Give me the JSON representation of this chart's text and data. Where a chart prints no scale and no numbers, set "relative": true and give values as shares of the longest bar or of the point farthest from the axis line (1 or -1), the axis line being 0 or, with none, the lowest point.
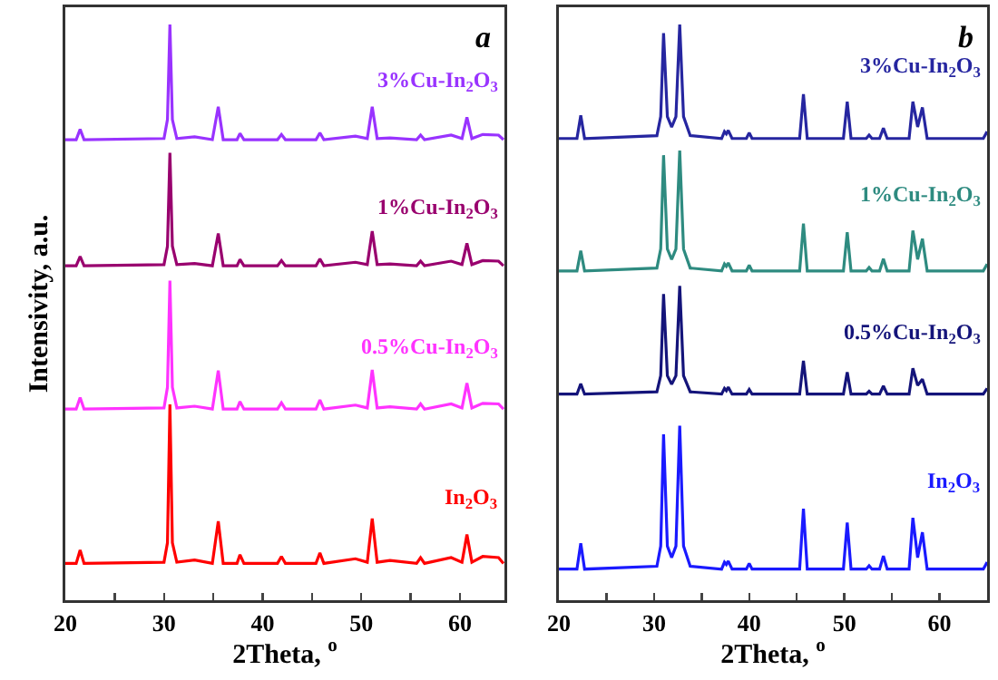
{
  "chart_data": [
    {
      "type": "line",
      "relative": true,
      "xlabel": "2Theta, $^{o}$",
      "ylabel": "Intensivity, a.u.",
      "annotations": [
        "a"
      ],
      "marker": "none",
      "line_style": "solid",
      "tick_labels": "x",
      "xlim": [
        20,
        64.5
      ],
      "xticks": [
        20,
        {
          "value": 25,
          "label": null
        },
        30,
        {
          "value": 35,
          "label": null
        },
        40,
        {
          "value": 45,
          "label": null
        },
        50,
        {
          "value": 55,
          "label": null
        },
        60
      ],
      "x": [
        20,
        21.1,
        21.5,
        21.9,
        30.0,
        30.35,
        30.6,
        30.85,
        31.3,
        33.1,
        34.9,
        35.5,
        36.0,
        37.4,
        37.7,
        38.1,
        41.5,
        41.9,
        42.3,
        45.4,
        45.8,
        46.2,
        49.4,
        50.6,
        51.1,
        51.6,
        52.9,
        55.6,
        56.0,
        56.4,
        59.1,
        60.2,
        60.7,
        61.2,
        62.3,
        63.9,
        64.4
      ],
      "series": [
        {
          "name": "In$_{2}$O$_{3}$",
          "color": "#ff0000",
          "values": [
            0.064,
            0.064,
            0.087,
            0.064,
            0.066,
            0.1,
            0.34,
            0.1,
            0.066,
            0.07,
            0.064,
            0.137,
            0.064,
            0.064,
            0.079,
            0.064,
            0.064,
            0.076,
            0.064,
            0.064,
            0.082,
            0.064,
            0.072,
            0.066,
            0.142,
            0.066,
            0.069,
            0.064,
            0.074,
            0.064,
            0.074,
            0.066,
            0.114,
            0.066,
            0.076,
            0.074,
            0.064
          ]
        },
        {
          "name": "0.5%Cu-In$_{2}$O$_{3}$",
          "color": "#ff33ff",
          "values": [
            0.332,
            0.332,
            0.352,
            0.332,
            0.334,
            0.37,
            0.555,
            0.37,
            0.334,
            0.337,
            0.332,
            0.399,
            0.332,
            0.332,
            0.345,
            0.332,
            0.332,
            0.343,
            0.332,
            0.332,
            0.348,
            0.332,
            0.339,
            0.334,
            0.4,
            0.334,
            0.336,
            0.332,
            0.341,
            0.332,
            0.341,
            0.334,
            0.377,
            0.334,
            0.342,
            0.341,
            0.332
          ]
        },
        {
          "name": "1%Cu-In$_{2}$O$_{3}$",
          "color": "#99006e",
          "values": [
            0.581,
            0.581,
            0.597,
            0.581,
            0.583,
            0.615,
            0.777,
            0.615,
            0.583,
            0.585,
            0.581,
            0.637,
            0.581,
            0.581,
            0.592,
            0.581,
            0.581,
            0.59,
            0.581,
            0.581,
            0.593,
            0.581,
            0.587,
            0.583,
            0.641,
            0.583,
            0.584,
            0.581,
            0.589,
            0.581,
            0.589,
            0.583,
            0.62,
            0.583,
            0.59,
            0.589,
            0.581
          ]
        },
        {
          "name": "3%Cu-In$_{2}$O$_{3}$",
          "color": "#9933ff",
          "values": [
            0.8,
            0.8,
            0.818,
            0.8,
            0.802,
            0.835,
            1.0,
            0.835,
            0.802,
            0.805,
            0.8,
            0.857,
            0.8,
            0.8,
            0.811,
            0.8,
            0.8,
            0.809,
            0.8,
            0.8,
            0.812,
            0.8,
            0.806,
            0.802,
            0.857,
            0.802,
            0.803,
            0.8,
            0.808,
            0.8,
            0.808,
            0.802,
            0.839,
            0.802,
            0.809,
            0.808,
            0.8
          ]
        }
      ]
    },
    {
      "type": "line",
      "relative": true,
      "xlabel": "2Theta, $^{o}$",
      "annotations": [
        "b"
      ],
      "marker": "none",
      "line_style": "solid",
      "tick_labels": "x",
      "xlim": [
        20,
        65
      ],
      "xticks": [
        20,
        {
          "value": 25,
          "label": null
        },
        30,
        {
          "value": 35,
          "label": null
        },
        40,
        {
          "value": 45,
          "label": null
        },
        50,
        {
          "value": 55,
          "label": null
        },
        60
      ],
      "x": [
        20,
        21.9,
        22.3,
        22.7,
        30.3,
        30.7,
        31.0,
        31.4,
        31.85,
        32.3,
        32.7,
        33.1,
        33.8,
        37.1,
        37.4,
        37.6,
        37.8,
        38.2,
        39.7,
        40.0,
        40.3,
        45.3,
        45.7,
        46.1,
        49.9,
        50.3,
        50.7,
        52.3,
        52.6,
        52.9,
        53.7,
        54.1,
        54.5,
        56.8,
        57.2,
        57.7,
        58.2,
        58.7,
        64.6,
        65
      ],
      "series": [
        {
          "name": "In$_{2}$O$_{3}$",
          "color": "#1a1aff",
          "values": [
            0.054,
            0.054,
            0.099,
            0.054,
            0.059,
            0.094,
            0.288,
            0.094,
            0.074,
            0.094,
            0.303,
            0.094,
            0.059,
            0.054,
            0.066,
            0.062,
            0.068,
            0.054,
            0.054,
            0.064,
            0.054,
            0.054,
            0.159,
            0.054,
            0.054,
            0.135,
            0.054,
            0.054,
            0.06,
            0.054,
            0.054,
            0.077,
            0.054,
            0.054,
            0.143,
            0.074,
            0.118,
            0.054,
            0.054,
            0.066
          ]
        },
        {
          "name": "0.5%Cu-In$_{2}$O$_{3}$",
          "color": "#14147a",
          "values": [
            0.358,
            0.358,
            0.376,
            0.358,
            0.362,
            0.39,
            0.532,
            0.39,
            0.375,
            0.39,
            0.546,
            0.39,
            0.362,
            0.358,
            0.368,
            0.364,
            0.37,
            0.358,
            0.358,
            0.366,
            0.358,
            0.358,
            0.416,
            0.358,
            0.358,
            0.396,
            0.358,
            0.358,
            0.363,
            0.358,
            0.358,
            0.372,
            0.358,
            0.358,
            0.403,
            0.373,
            0.384,
            0.358,
            0.358,
            0.368
          ]
        },
        {
          "name": "1%Cu-In$_{2}$O$_{3}$",
          "color": "#2e8b80",
          "values": [
            0.572,
            0.572,
            0.607,
            0.572,
            0.577,
            0.61,
            0.773,
            0.61,
            0.592,
            0.61,
            0.781,
            0.61,
            0.577,
            0.572,
            0.584,
            0.58,
            0.586,
            0.572,
            0.572,
            0.582,
            0.572,
            0.572,
            0.654,
            0.572,
            0.572,
            0.639,
            0.572,
            0.572,
            0.578,
            0.572,
            0.572,
            0.593,
            0.572,
            0.572,
            0.642,
            0.592,
            0.628,
            0.572,
            0.572,
            0.584
          ]
        },
        {
          "name": "3%Cu-In$_{2}$O$_{3}$",
          "color": "#2626a0",
          "values": [
            0.802,
            0.802,
            0.842,
            0.802,
            0.807,
            0.84,
            0.985,
            0.84,
            0.822,
            0.84,
            1.0,
            0.84,
            0.807,
            0.802,
            0.814,
            0.81,
            0.816,
            0.802,
            0.802,
            0.812,
            0.802,
            0.802,
            0.879,
            0.802,
            0.802,
            0.866,
            0.802,
            0.802,
            0.808,
            0.802,
            0.802,
            0.82,
            0.802,
            0.802,
            0.866,
            0.822,
            0.856,
            0.802,
            0.802,
            0.814
          ]
        }
      ]
    }
  ]
}
